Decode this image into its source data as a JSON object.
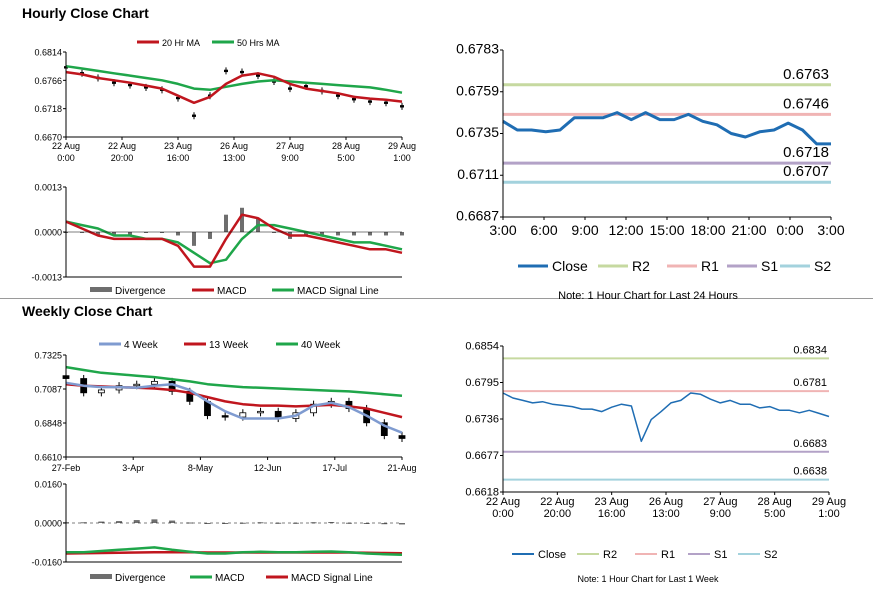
{
  "hourly_title": "Hourly Close Chart",
  "weekly_title": "Weekly Close Chart",
  "colors": {
    "red": "#c0161e",
    "green": "#1fa64a",
    "blue": "#1f6db3",
    "gray": "#6e6e6e",
    "r2": "#c6d9a0",
    "r1": "#f0b4b4",
    "s1": "#b3a2c7",
    "s2": "#a3d2dd",
    "steel": "#7f9bd0"
  },
  "chart_data": [
    {
      "id": "hourly_price",
      "type": "line",
      "legend": [
        "20 Hr MA",
        "50 Hrs MA"
      ],
      "ylim": [
        0.667,
        0.6814
      ],
      "yticks": [
        "0.6814",
        "0.6766",
        "0.6718",
        "0.6670"
      ],
      "xticks": [
        [
          "22 Aug",
          "0:00"
        ],
        [
          "22 Aug",
          "20:00"
        ],
        [
          "23 Aug",
          "16:00"
        ],
        [
          "26 Aug",
          "13:00"
        ],
        [
          "27 Aug",
          "9:00"
        ],
        [
          "28 Aug",
          "5:00"
        ],
        [
          "29 Aug",
          "1:00"
        ]
      ],
      "series": [
        {
          "name": "20 Hr MA",
          "values": [
            0.678,
            0.6776,
            0.677,
            0.6766,
            0.6762,
            0.6757,
            0.6752,
            0.674,
            0.6728,
            0.6738,
            0.676,
            0.6774,
            0.6778,
            0.6772,
            0.676,
            0.6752,
            0.6748,
            0.6744,
            0.6738,
            0.6735,
            0.6733,
            0.673
          ]
        },
        {
          "name": "50 Hrs MA",
          "values": [
            0.679,
            0.6786,
            0.6782,
            0.6778,
            0.6774,
            0.677,
            0.6766,
            0.676,
            0.6752,
            0.675,
            0.6755,
            0.676,
            0.6764,
            0.6766,
            0.6764,
            0.6762,
            0.676,
            0.6758,
            0.6756,
            0.6754,
            0.675,
            0.6745
          ]
        },
        {
          "name": "Close",
          "values": [
            0.6788,
            0.6778,
            0.677,
            0.6762,
            0.6758,
            0.6754,
            0.675,
            0.6736,
            0.6706,
            0.674,
            0.6782,
            0.678,
            0.6774,
            0.6764,
            0.6752,
            0.6756,
            0.6748,
            0.674,
            0.6734,
            0.673,
            0.6728,
            0.6722
          ]
        }
      ]
    },
    {
      "id": "hourly_macd",
      "type": "line",
      "legend": [
        "Divergence",
        "MACD",
        "MACD Signal Line"
      ],
      "ylim": [
        -0.0013,
        0.0013
      ],
      "yticks": [
        "0.0013",
        "0.0000",
        "-0.0013"
      ],
      "series": [
        {
          "name": "MACD",
          "values": [
            0.0003,
            0.0001,
            -0.0001,
            -0.0002,
            -0.0002,
            -0.0002,
            -0.0002,
            -0.0004,
            -0.001,
            -0.001,
            -0.0002,
            0.0005,
            0.0004,
            0.0001,
            -0.0001,
            -0.0001,
            -0.0002,
            -0.0003,
            -0.0004,
            -0.0005,
            -0.0005,
            -0.0006
          ]
        },
        {
          "name": "MACD Signal Line",
          "values": [
            0.0003,
            0.0002,
            0.0001,
            -0.0001,
            -0.0001,
            -0.0002,
            -0.0002,
            -0.0003,
            -0.0006,
            -0.0009,
            -0.0008,
            -0.0002,
            0.0002,
            0.0002,
            0.0001,
            0.0,
            -0.0001,
            -0.0002,
            -0.0003,
            -0.0003,
            -0.0004,
            -0.0005
          ]
        },
        {
          "name": "Divergence",
          "values": [
            0,
            0,
            -0.0001,
            -0.0001,
            -0.0001,
            0,
            0,
            -0.0001,
            -0.0004,
            -0.0002,
            0.0005,
            0.0007,
            0.0004,
            0,
            -0.0002,
            -0.0001,
            -0.0001,
            -0.0001,
            -0.0001,
            -0.0001,
            -0.0001,
            -0.0001
          ]
        }
      ]
    },
    {
      "id": "last24",
      "type": "line",
      "ylim": [
        0.6687,
        0.6783
      ],
      "yticks": [
        "0.6783",
        "0.6759",
        "0.6735",
        "0.6711",
        "0.6687"
      ],
      "xticks": [
        "3:00",
        "6:00",
        "9:00",
        "12:00",
        "15:00",
        "18:00",
        "21:00",
        "0:00",
        "3:00"
      ],
      "levels": [
        {
          "name": "R2",
          "value": 0.6763,
          "label": "0.6763"
        },
        {
          "name": "R1",
          "value": 0.6746,
          "label": "0.6746"
        },
        {
          "name": "S1",
          "value": 0.6718,
          "label": "0.6718"
        },
        {
          "name": "S2",
          "value": 0.6707,
          "label": "0.6707"
        }
      ],
      "series": [
        {
          "name": "Close",
          "values": [
            0.6742,
            0.6737,
            0.6737,
            0.6736,
            0.6737,
            0.6744,
            0.6744,
            0.6744,
            0.6747,
            0.6743,
            0.6747,
            0.6743,
            0.6743,
            0.6746,
            0.6742,
            0.674,
            0.6735,
            0.6733,
            0.6736,
            0.6737,
            0.6741,
            0.6737,
            0.6729,
            0.6729
          ]
        }
      ],
      "legend": [
        "Close",
        "R2",
        "R1",
        "S1",
        "S2"
      ],
      "note": "Note: 1 Hour Chart for Last 24 Hours"
    },
    {
      "id": "weekly_price",
      "type": "line",
      "legend": [
        "4 Week",
        "13 Week",
        "40 Week"
      ],
      "ylim": [
        0.661,
        0.7325
      ],
      "yticks": [
        "0.7325",
        "0.7087",
        "0.6848",
        "0.6610"
      ],
      "xticks": [
        "27-Feb",
        "3-Apr",
        "8-May",
        "12-Jun",
        "17-Jul",
        "21-Aug"
      ],
      "series": [
        {
          "name": "4 Week",
          "values": [
            0.713,
            0.711,
            0.71,
            0.71,
            0.7095,
            0.711,
            0.712,
            0.708,
            0.7,
            0.693,
            0.688,
            0.688,
            0.688,
            0.69,
            0.697,
            0.699,
            0.696,
            0.69,
            0.683,
            0.678
          ]
        },
        {
          "name": "13 Week",
          "values": [
            0.712,
            0.711,
            0.7105,
            0.71,
            0.7095,
            0.709,
            0.708,
            0.706,
            0.703,
            0.7,
            0.698,
            0.697,
            0.697,
            0.6965,
            0.697,
            0.6975,
            0.6965,
            0.695,
            0.692,
            0.689
          ]
        },
        {
          "name": "40 Week",
          "values": [
            0.724,
            0.722,
            0.72,
            0.719,
            0.718,
            0.717,
            0.7155,
            0.714,
            0.712,
            0.711,
            0.71,
            0.7095,
            0.709,
            0.7085,
            0.708,
            0.7075,
            0.707,
            0.706,
            0.705,
            0.704
          ]
        },
        {
          "name": "Close",
          "values": [
            0.716,
            0.706,
            0.708,
            0.711,
            0.712,
            0.714,
            0.707,
            0.7,
            0.69,
            0.689,
            0.692,
            0.693,
            0.688,
            0.692,
            0.698,
            0.7,
            0.695,
            0.685,
            0.676,
            0.674
          ]
        }
      ]
    },
    {
      "id": "weekly_macd",
      "type": "line",
      "legend": [
        "Divergence",
        "MACD",
        "MACD Signal Line"
      ],
      "ylim": [
        -0.016,
        0.016
      ],
      "yticks": [
        "0.0160",
        "0.0000",
        "-0.0160"
      ],
      "series": [
        {
          "name": "MACD",
          "values": [
            -0.012,
            -0.012,
            -0.0115,
            -0.011,
            -0.0105,
            -0.01,
            -0.011,
            -0.0118,
            -0.0125,
            -0.0125,
            -0.012,
            -0.0118,
            -0.012,
            -0.012,
            -0.0118,
            -0.0117,
            -0.012,
            -0.0125,
            -0.0128,
            -0.013
          ]
        },
        {
          "name": "MACD Signal Line",
          "values": [
            -0.0125,
            -0.0124,
            -0.0123,
            -0.0122,
            -0.0121,
            -0.012,
            -0.012,
            -0.012,
            -0.0121,
            -0.0121,
            -0.0121,
            -0.0121,
            -0.0121,
            -0.0121,
            -0.0121,
            -0.0121,
            -0.0121,
            -0.0122,
            -0.0123,
            -0.0124
          ]
        },
        {
          "name": "Divergence",
          "values": [
            0.0003,
            0.0003,
            0.0006,
            0.0008,
            0.0012,
            0.0015,
            0.001,
            0.0002,
            -0.0004,
            -0.0004,
            0.0001,
            0.0003,
            0.0001,
            0.0001,
            0.0003,
            0.0004,
            0.0001,
            -0.0003,
            -0.0005,
            -0.0006
          ]
        }
      ]
    },
    {
      "id": "last_week",
      "type": "line",
      "ylim": [
        0.6618,
        0.6854
      ],
      "yticks": [
        "0.6854",
        "0.6795",
        "0.6736",
        "0.6677",
        "0.6618"
      ],
      "xticks": [
        [
          "22 Aug",
          "0:00"
        ],
        [
          "22 Aug",
          "20:00"
        ],
        [
          "23 Aug",
          "16:00"
        ],
        [
          "26 Aug",
          "13:00"
        ],
        [
          "27 Aug",
          "9:00"
        ],
        [
          "28 Aug",
          "5:00"
        ],
        [
          "29 Aug",
          "1:00"
        ]
      ],
      "levels": [
        {
          "name": "R2",
          "value": 0.6834,
          "label": "0.6834"
        },
        {
          "name": "R1",
          "value": 0.6781,
          "label": "0.6781"
        },
        {
          "name": "S1",
          "value": 0.6683,
          "label": "0.6683"
        },
        {
          "name": "S2",
          "value": 0.6638,
          "label": "0.6638"
        }
      ],
      "series": [
        {
          "name": "Close",
          "values": [
            0.6778,
            0.677,
            0.6766,
            0.6762,
            0.6764,
            0.676,
            0.6758,
            0.6756,
            0.6752,
            0.6752,
            0.6748,
            0.6755,
            0.676,
            0.6757,
            0.67,
            0.6735,
            0.6748,
            0.6762,
            0.6766,
            0.6778,
            0.6776,
            0.6768,
            0.6762,
            0.6766,
            0.676,
            0.676,
            0.6754,
            0.6756,
            0.675,
            0.675,
            0.6746,
            0.675,
            0.6745,
            0.674
          ]
        }
      ],
      "legend": [
        "Close",
        "R2",
        "R1",
        "S1",
        "S2"
      ],
      "note": "Note: 1 Hour Chart for Last 1 Week"
    }
  ]
}
